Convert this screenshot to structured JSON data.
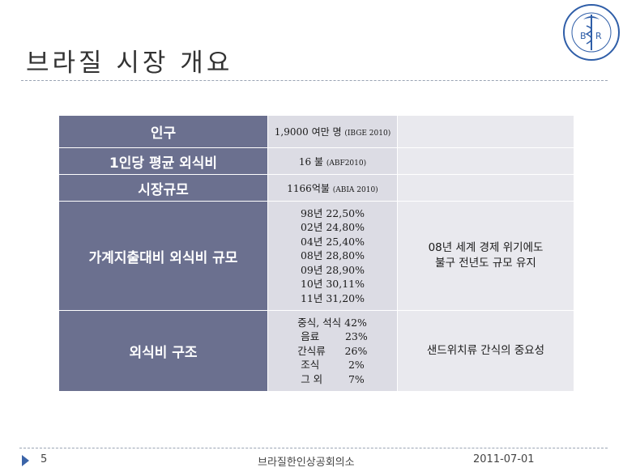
{
  "title": "브라질 시장 개요",
  "logo": {
    "arc_text": "CÂMARA DE COMERCIO E INDÚSTRIA BRASIL-COREIA",
    "letters": [
      "B",
      "R"
    ],
    "bottom_text": "브라질 한인 상공회의소",
    "color": "#2f5ea8"
  },
  "table": {
    "rows": [
      {
        "label": "인구",
        "value_main": "1,9000 여만 명",
        "value_small": "(IBGE 2010)",
        "note": ""
      },
      {
        "label": "1인당 평균 외식비",
        "value_main": "16 불",
        "value_small": "(ABF2010)",
        "note": ""
      },
      {
        "label": "시장규모",
        "value_main": "1166억불",
        "value_small": "(ABIA 2010)",
        "note": ""
      },
      {
        "label": "가계지출대비 외식비 규모",
        "values": [
          "98년 22,50%",
          "02년 24,80%",
          "04년 25,40%",
          "08년 28,80%",
          "09년 28,90%",
          "10년 30,11%",
          "11년 31,20%"
        ],
        "note_lines": [
          "08년 세계 경제 위기에도",
          "불구 전년도 규모 유지"
        ]
      },
      {
        "label": "외식비 구조",
        "values": [
          "중식, 석식 42%",
          " 음료        23%",
          "간식류      26%",
          " 조식         2%",
          " 그 외        7%"
        ],
        "note_lines": [
          "샌드위치류 간식의 중요성"
        ]
      }
    ]
  },
  "footer": {
    "page": "5",
    "org": "브라질한인상공회의소",
    "date": "2011-07-01"
  },
  "colors": {
    "label_bg": "#6b708f",
    "value_bg": "#dcdce4",
    "note_bg": "#e9e9ee",
    "accent": "#3b64a8"
  }
}
